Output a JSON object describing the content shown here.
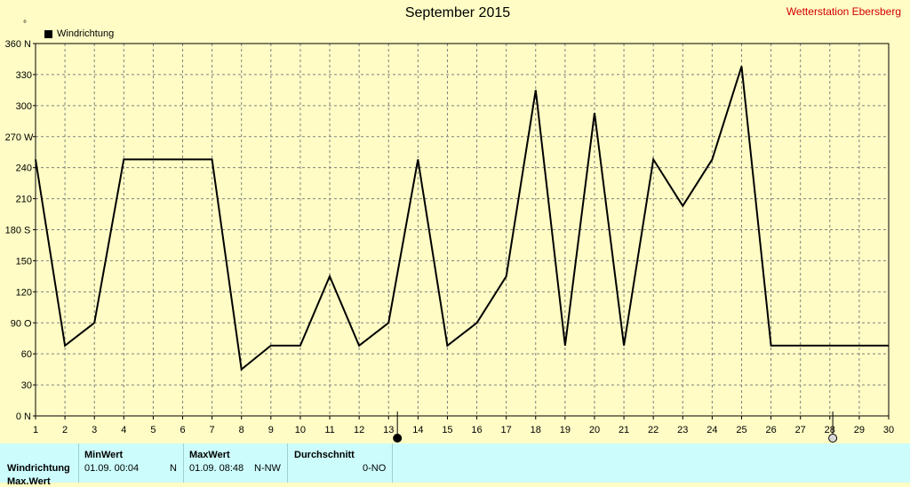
{
  "chart_data": {
    "type": "line",
    "title": "September 2015",
    "x": [
      1,
      2,
      3,
      4,
      5,
      6,
      7,
      8,
      9,
      10,
      11,
      12,
      13,
      14,
      15,
      16,
      17,
      18,
      19,
      20,
      21,
      22,
      23,
      24,
      25,
      26,
      27,
      28,
      29,
      30
    ],
    "series": [
      {
        "name": "Windrichtung",
        "values": [
          248,
          68,
          90,
          248,
          248,
          248,
          248,
          45,
          68,
          68,
          135,
          68,
          90,
          248,
          68,
          90,
          135,
          315,
          68,
          293,
          68,
          248,
          203,
          248,
          338,
          68,
          68,
          68,
          68,
          68
        ]
      }
    ],
    "xlim": [
      1,
      30
    ],
    "ylim": [
      0,
      360
    ],
    "y_ticks": [
      {
        "value": 0,
        "label": "0",
        "dir": "N"
      },
      {
        "value": 30,
        "label": "30",
        "dir": ""
      },
      {
        "value": 60,
        "label": "60",
        "dir": ""
      },
      {
        "value": 90,
        "label": "90",
        "dir": "O"
      },
      {
        "value": 120,
        "label": "120",
        "dir": ""
      },
      {
        "value": 150,
        "label": "150",
        "dir": ""
      },
      {
        "value": 180,
        "label": "180",
        "dir": "S"
      },
      {
        "value": 210,
        "label": "210",
        "dir": ""
      },
      {
        "value": 240,
        "label": "240",
        "dir": ""
      },
      {
        "value": 270,
        "label": "270",
        "dir": "W"
      },
      {
        "value": 300,
        "label": "300",
        "dir": ""
      },
      {
        "value": 330,
        "label": "330",
        "dir": ""
      },
      {
        "value": 360,
        "label": "360",
        "dir": "N"
      }
    ],
    "y_unit_symbol": "°",
    "grid": true,
    "legend": "top-left",
    "markers": [
      {
        "x": 13.3,
        "style": "filled"
      },
      {
        "x": 28.1,
        "style": "hollow"
      }
    ],
    "line_color": "#000000",
    "background_color": "#fffdc5",
    "grid_color": "#808080"
  },
  "header": {
    "station": "Wetterstation Ebersberg"
  },
  "stats": {
    "row_label": "Windrichtung",
    "row_label_2": "Max.Wert",
    "min": {
      "header": "MinWert",
      "datetime": "01.09.  00:04",
      "direction": "N"
    },
    "max": {
      "header": "MaxWert",
      "datetime": "01.09.  08:48",
      "direction": "N-NW"
    },
    "avg": {
      "header": "Durchschnitt",
      "value": "0-NO"
    }
  }
}
